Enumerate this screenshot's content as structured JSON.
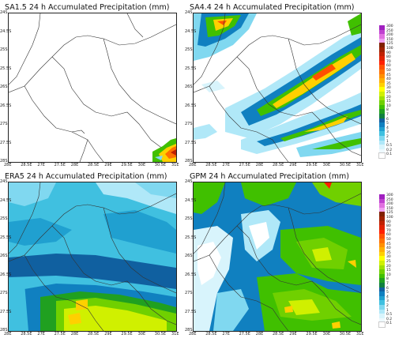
{
  "panels": [
    {
      "id": "sa15",
      "title": "SA1.5  24 h Accumulated Precipitation (mm)"
    },
    {
      "id": "sa44",
      "title": "SA4.4  24 h Accumulated Precipitation (mm)"
    },
    {
      "id": "era5",
      "title": "ERA5  24 h Accumulated Precipitation (mm)"
    },
    {
      "id": "gpm",
      "title": "GPM  24 h Accumulated Precipitation (mm)"
    }
  ],
  "axes": {
    "lon_labels": [
      "28E",
      "28.5E",
      "29E",
      "29.5E",
      "30E",
      "30.5E",
      "31E"
    ],
    "lon_labels_full": [
      "28E",
      "28.5E",
      "27E",
      "27.5E",
      "28E",
      "28.5E",
      "29E",
      "29.5E",
      "30E",
      "30.5E",
      "31E"
    ],
    "lat_labels": [
      "24S",
      "24.5S",
      "25S",
      "25.5S",
      "26S",
      "26.5S",
      "27S",
      "27.5S",
      "28S"
    ]
  },
  "colorbar": {
    "levels": [
      "300",
      "250",
      "200",
      "150",
      "125",
      "100",
      "90",
      "80",
      "70",
      "60",
      "50",
      "45",
      "40",
      "35",
      "30",
      "25",
      "20",
      "15",
      "10",
      "8",
      "7",
      "6",
      "5",
      "4",
      "3",
      "2",
      "1",
      "0.5",
      "0.2",
      "0.1"
    ],
    "colors": [
      "#a020c0",
      "#c040d0",
      "#e070e0",
      "#f0a0f0",
      "#802000",
      "#a02000",
      "#c02000",
      "#e02000",
      "#ff2000",
      "#ff5000",
      "#ff7000",
      "#ff9000",
      "#ffb000",
      "#ffd000",
      "#ffff00",
      "#d0f000",
      "#a0e000",
      "#70d000",
      "#40c000",
      "#20a020",
      "#108040",
      "#1060a0",
      "#1080c0",
      "#20a0d0",
      "#40c0e0",
      "#80d8f0",
      "#b0e8f8",
      "#d8f4fc",
      "#eef9fe",
      "#ffffff"
    ]
  }
}
